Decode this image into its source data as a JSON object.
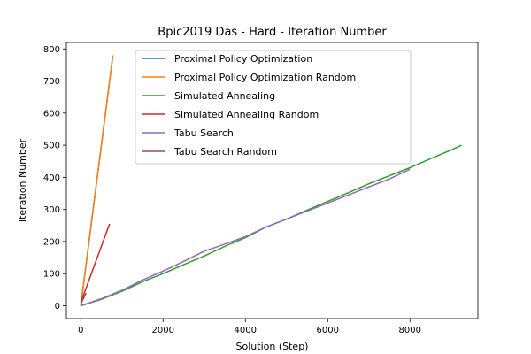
{
  "chart_data": {
    "type": "line",
    "title": "Bpic2019 Das - Hard - Iteration Number",
    "xlabel": "Solution (Step)",
    "ylabel": "Iteration Number",
    "xlim": [
      -350,
      9650
    ],
    "ylim": [
      -40,
      820
    ],
    "xticks": [
      0,
      2000,
      4000,
      6000,
      8000
    ],
    "yticks": [
      0,
      100,
      200,
      300,
      400,
      500,
      600,
      700,
      800
    ],
    "xtick_labels": [
      "0",
      "2000",
      "4000",
      "6000",
      "8000"
    ],
    "ytick_labels": [
      "0",
      "100",
      "200",
      "300",
      "400",
      "500",
      "600",
      "700",
      "800"
    ],
    "grid": false,
    "legend_position": "top",
    "series": [
      {
        "name": "Proximal Policy Optimization",
        "color": "#1f77b4",
        "x": [
          0,
          780
        ],
        "y": [
          0,
          780
        ]
      },
      {
        "name": "Proximal Policy Optimization Random",
        "color": "#ff7f0e",
        "x": [
          0,
          780
        ],
        "y": [
          0,
          780
        ]
      },
      {
        "name": "Simulated Annealing",
        "color": "#2ca02c",
        "x": [
          0,
          500,
          1000,
          1500,
          2000,
          2500,
          3000,
          3500,
          4000,
          4500,
          5000,
          5500,
          6000,
          6500,
          7000,
          7500,
          8000,
          8500,
          9000,
          9250
        ],
        "y": [
          0,
          20,
          45,
          75,
          100,
          128,
          155,
          185,
          212,
          245,
          270,
          298,
          325,
          352,
          380,
          405,
          430,
          458,
          485,
          500
        ]
      },
      {
        "name": "Simulated Annealing Random",
        "color": "#d62728",
        "x": [
          0,
          700
        ],
        "y": [
          10,
          255
        ]
      },
      {
        "name": "Tabu Search",
        "color": "#9467bd",
        "x": [
          0,
          500,
          1000,
          1500,
          2000,
          2500,
          3000,
          3500,
          4000,
          4500,
          5000,
          5500,
          6000,
          6500,
          7000,
          7500,
          8000
        ],
        "y": [
          0,
          22,
          48,
          80,
          108,
          138,
          170,
          192,
          215,
          245,
          270,
          295,
          320,
          345,
          370,
          395,
          425
        ]
      },
      {
        "name": "Tabu Search Random",
        "color": "#8c564b",
        "x": [
          0,
          130
        ],
        "y": [
          5,
          40
        ]
      }
    ]
  }
}
